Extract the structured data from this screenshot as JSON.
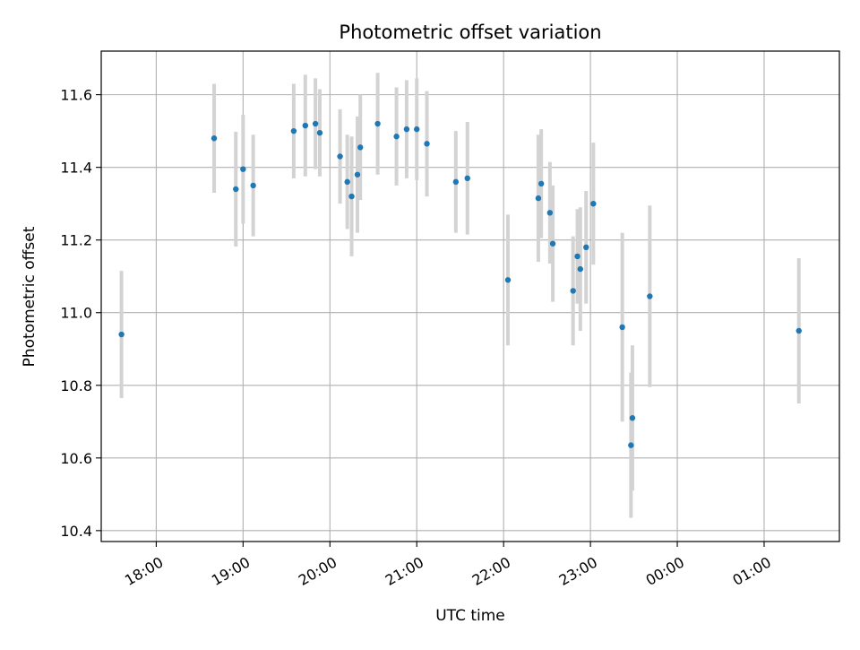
{
  "chart_data": {
    "type": "scatter",
    "title": "Photometric offset variation",
    "xlabel": "UTC time",
    "ylabel": "Photometric offset",
    "x_ticks": [
      "18:00",
      "19:00",
      "20:00",
      "21:00",
      "22:00",
      "23:00",
      "00:00",
      "01:00"
    ],
    "y_ticks": [
      "10.4",
      "10.6",
      "10.8",
      "11.0",
      "11.2",
      "11.4",
      "11.6"
    ],
    "xlim": [
      "17:22",
      "01:52"
    ],
    "ylim": [
      10.37,
      11.72
    ],
    "grid": true,
    "colors": {
      "point": "#1f77b4",
      "errorbar": "#d3d3d3",
      "grid": "#b0b0b0"
    },
    "series": [
      {
        "points": [
          {
            "x": "17:36",
            "y": 10.94,
            "yerr": 0.175
          },
          {
            "x": "18:40",
            "y": 11.48,
            "yerr": 0.15
          },
          {
            "x": "18:55",
            "y": 11.34,
            "yerr": 0.158
          },
          {
            "x": "19:00",
            "y": 11.395,
            "yerr": 0.15
          },
          {
            "x": "19:07",
            "y": 11.35,
            "yerr": 0.14
          },
          {
            "x": "19:35",
            "y": 11.5,
            "yerr": 0.13
          },
          {
            "x": "19:43",
            "y": 11.515,
            "yerr": 0.14
          },
          {
            "x": "19:50",
            "y": 11.52,
            "yerr": 0.125
          },
          {
            "x": "19:53",
            "y": 11.495,
            "yerr": 0.12
          },
          {
            "x": "20:07",
            "y": 11.43,
            "yerr": 0.13
          },
          {
            "x": "20:12",
            "y": 11.36,
            "yerr": 0.13
          },
          {
            "x": "20:15",
            "y": 11.32,
            "yerr": 0.165
          },
          {
            "x": "20:19",
            "y": 11.38,
            "yerr": 0.16
          },
          {
            "x": "20:21",
            "y": 11.455,
            "yerr": 0.145
          },
          {
            "x": "20:33",
            "y": 11.52,
            "yerr": 0.14
          },
          {
            "x": "20:46",
            "y": 11.485,
            "yerr": 0.135
          },
          {
            "x": "20:53",
            "y": 11.505,
            "yerr": 0.135
          },
          {
            "x": "21:00",
            "y": 11.505,
            "yerr": 0.14
          },
          {
            "x": "21:07",
            "y": 11.465,
            "yerr": 0.145
          },
          {
            "x": "21:27",
            "y": 11.36,
            "yerr": 0.14
          },
          {
            "x": "21:35",
            "y": 11.37,
            "yerr": 0.155
          },
          {
            "x": "22:03",
            "y": 11.09,
            "yerr": 0.18
          },
          {
            "x": "22:24",
            "y": 11.315,
            "yerr": 0.175
          },
          {
            "x": "22:26",
            "y": 11.355,
            "yerr": 0.15
          },
          {
            "x": "22:32",
            "y": 11.275,
            "yerr": 0.14
          },
          {
            "x": "22:34",
            "y": 11.19,
            "yerr": 0.16
          },
          {
            "x": "22:48",
            "y": 11.06,
            "yerr": 0.15
          },
          {
            "x": "22:51",
            "y": 11.155,
            "yerr": 0.13
          },
          {
            "x": "22:53",
            "y": 11.12,
            "yerr": 0.17
          },
          {
            "x": "22:57",
            "y": 11.18,
            "yerr": 0.155
          },
          {
            "x": "23:02",
            "y": 11.3,
            "yerr": 0.168
          },
          {
            "x": "23:22",
            "y": 10.96,
            "yerr": 0.26
          },
          {
            "x": "23:28",
            "y": 10.635,
            "yerr": 0.2
          },
          {
            "x": "23:29",
            "y": 10.71,
            "yerr": 0.2
          },
          {
            "x": "23:41",
            "y": 11.045,
            "yerr": 0.25
          },
          {
            "x": "01:24",
            "y": 10.95,
            "yerr": 0.2
          }
        ]
      }
    ]
  }
}
